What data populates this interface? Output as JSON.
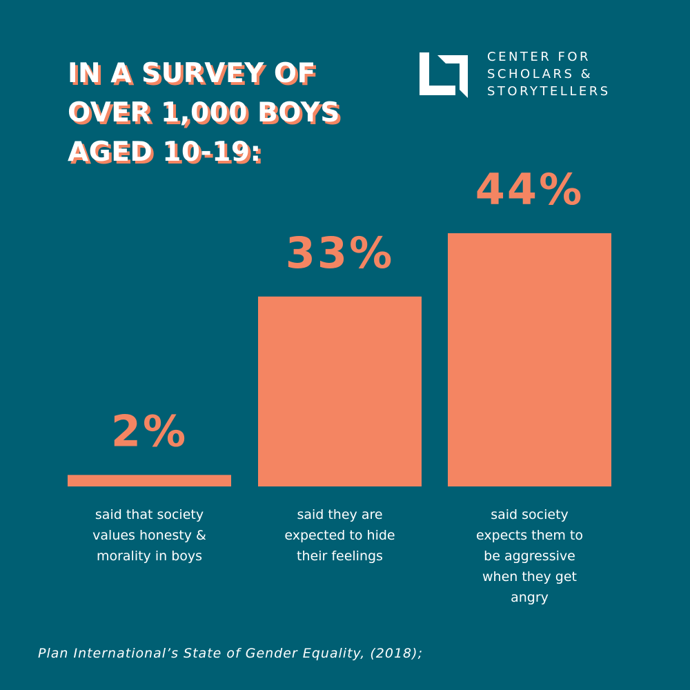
{
  "chart_data": {
    "type": "bar",
    "title": "IN A SURVEY OF OVER 1,000 BOYS AGED 10-19:",
    "title_lines": [
      "IN A SURVEY OF",
      "OVER 1,000 BOYS",
      "AGED 10-19:"
    ],
    "categories": [
      "said that society values honesty & morality in boys",
      "said they are expected to hide their feelings",
      "said society expects them to be aggressive when they get angry"
    ],
    "caption_lines": [
      [
        "said that society",
        "values honesty &",
        "morality in boys"
      ],
      [
        "said they are",
        "expected to hide",
        "their feelings"
      ],
      [
        "said society",
        "expects them to",
        "be aggressive",
        "when they get",
        "angry"
      ]
    ],
    "values": [
      2,
      33,
      44
    ],
    "value_labels": [
      "2%",
      "33%",
      "44%"
    ],
    "ylim": [
      0,
      44
    ],
    "xlabel": "",
    "ylabel": "",
    "grid": false
  },
  "logo": {
    "lines": [
      "CENTER FOR",
      "SCHOLARS &",
      "STORYTELLERS"
    ]
  },
  "source": "Plan International’s State of Gender Equality, (2018);",
  "colors": {
    "background": "#005f73",
    "bar": "#f48562",
    "text": "#ffffff"
  }
}
